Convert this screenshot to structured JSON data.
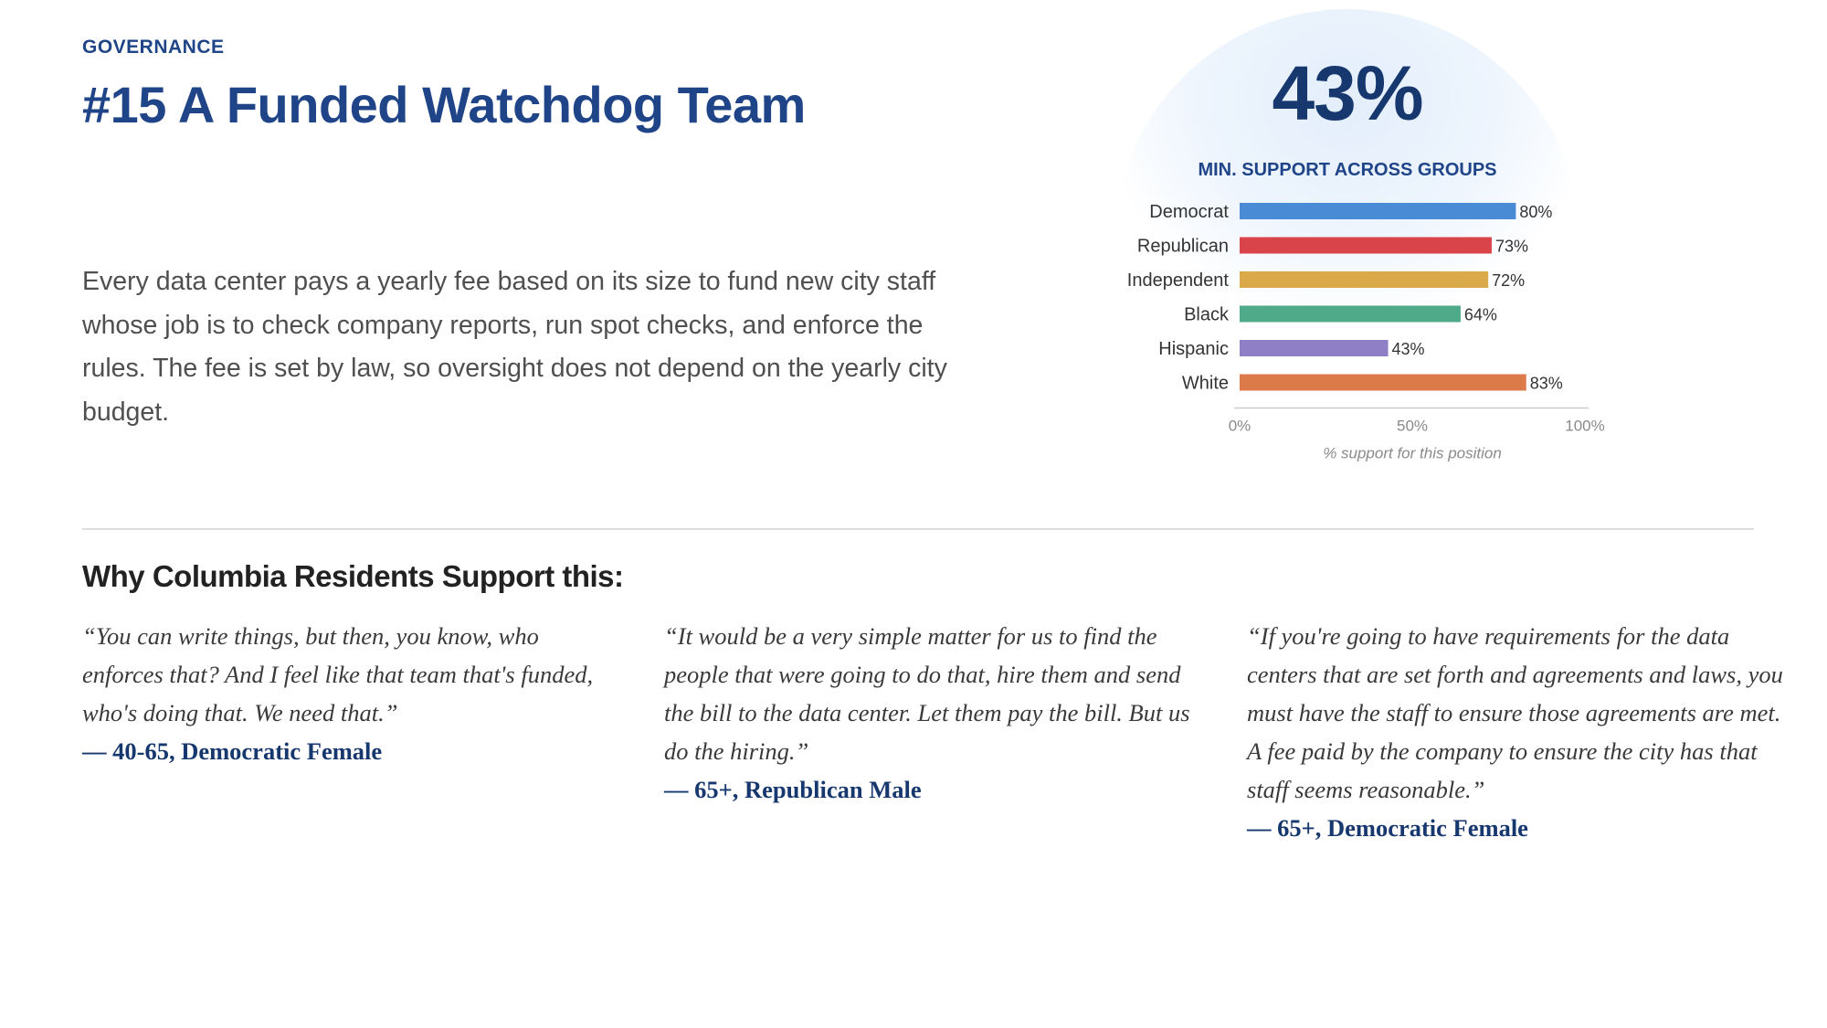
{
  "header": {
    "category": "GOVERNANCE",
    "title": "#15 A Funded Watchdog Team"
  },
  "description": "Every data center pays a yearly fee based on its size to fund new city staff whose job is to check company reports, run spot checks, and enforce the rules. The fee is set by law, so oversight does not depend on the yearly city budget.",
  "summary": {
    "value": "43%",
    "label": "MIN. SUPPORT ACROSS GROUPS"
  },
  "chart_data": {
    "type": "bar",
    "orientation": "horizontal",
    "categories": [
      "Democrat",
      "Republican",
      "Independent",
      "Black",
      "Hispanic",
      "White"
    ],
    "values": [
      80,
      73,
      72,
      64,
      43,
      83
    ],
    "value_labels": [
      "80%",
      "73%",
      "72%",
      "64%",
      "43%",
      "83%"
    ],
    "colors": [
      "#4a8bd6",
      "#d9434a",
      "#d9a94a",
      "#4faa8a",
      "#8f7fc7",
      "#dd7a4a"
    ],
    "xlim": [
      0,
      100
    ],
    "xticks": [
      0,
      50,
      100
    ],
    "xtick_labels": [
      "0%",
      "50%",
      "100%"
    ],
    "xlabel": "% support for this position",
    "ylabel": "",
    "grid": false
  },
  "why": {
    "heading": "Why Columbia Residents Support this:",
    "quotes": [
      {
        "text": "“You can write things, but then, you know, who enforces that? And I feel like that team that's funded, who's doing that. We need that.”",
        "attribution": "— 40-65, Democratic Female"
      },
      {
        "text": "“It would be a very simple matter for us to find the people that were going to do that, hire them and send the bill to the data center. Let them pay the bill. But us do the hiring.”",
        "attribution": "— 65+, Republican Male"
      },
      {
        "text": "“If you're going to have requirements for the data centers that are set forth and agreements and laws, you must have the staff to ensure those agreements are met. A fee paid by the company to ensure the city has that staff seems reasonable.”",
        "attribution": "— 65+, Democratic Female"
      }
    ]
  }
}
